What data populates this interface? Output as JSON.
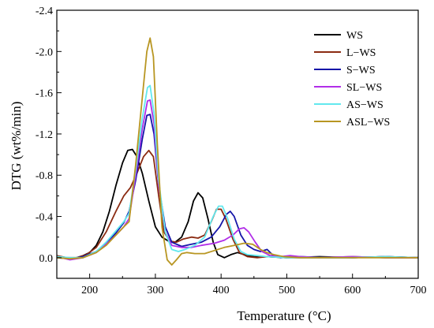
{
  "chart_data": {
    "type": "line",
    "title": "",
    "xlabel": "Temperature (°C)",
    "ylabel": "DTG (wt%/min)",
    "xlim": [
      150,
      700
    ],
    "ylim": [
      0.2,
      -2.4
    ],
    "y_axis_inverted": true,
    "x_ticks": [
      200,
      300,
      400,
      500,
      600,
      700
    ],
    "x_tick_labels": [
      "200",
      "300",
      "400",
      "500",
      "600",
      "700"
    ],
    "y_ticks": [
      0.0,
      -0.4,
      -0.8,
      -1.2,
      -1.6,
      -2.0,
      -2.4
    ],
    "y_tick_labels": [
      "0.0",
      "-0.4",
      "-0.8",
      "-1.2",
      "-1.6",
      "-2.0",
      "-2.4"
    ],
    "grid": false,
    "legend_position": "top-right",
    "series": [
      {
        "name": "WS",
        "color": "#000000",
        "points": [
          [
            150,
            -0.02
          ],
          [
            160,
            0.0
          ],
          [
            175,
            0.01
          ],
          [
            190,
            -0.02
          ],
          [
            200,
            -0.05
          ],
          [
            210,
            -0.12
          ],
          [
            220,
            -0.25
          ],
          [
            230,
            -0.45
          ],
          [
            240,
            -0.7
          ],
          [
            250,
            -0.92
          ],
          [
            258,
            -1.04
          ],
          [
            265,
            -1.05
          ],
          [
            272,
            -0.98
          ],
          [
            280,
            -0.82
          ],
          [
            290,
            -0.55
          ],
          [
            300,
            -0.3
          ],
          [
            310,
            -0.2
          ],
          [
            320,
            -0.16
          ],
          [
            330,
            -0.15
          ],
          [
            340,
            -0.2
          ],
          [
            350,
            -0.35
          ],
          [
            358,
            -0.55
          ],
          [
            365,
            -0.63
          ],
          [
            372,
            -0.58
          ],
          [
            380,
            -0.38
          ],
          [
            388,
            -0.15
          ],
          [
            395,
            -0.03
          ],
          [
            405,
            0.0
          ],
          [
            415,
            -0.03
          ],
          [
            425,
            -0.05
          ],
          [
            435,
            -0.03
          ],
          [
            450,
            -0.01
          ],
          [
            470,
            -0.01
          ],
          [
            500,
            0.0
          ],
          [
            550,
            -0.01
          ],
          [
            600,
            0.0
          ],
          [
            650,
            -0.01
          ],
          [
            700,
            0.0
          ]
        ]
      },
      {
        "name": "L−WS",
        "color": "#8b2b12",
        "points": [
          [
            150,
            -0.02
          ],
          [
            165,
            0.0
          ],
          [
            180,
            0.0
          ],
          [
            195,
            -0.03
          ],
          [
            210,
            -0.1
          ],
          [
            225,
            -0.25
          ],
          [
            240,
            -0.45
          ],
          [
            252,
            -0.6
          ],
          [
            262,
            -0.68
          ],
          [
            272,
            -0.82
          ],
          [
            282,
            -0.98
          ],
          [
            290,
            -1.04
          ],
          [
            297,
            -0.98
          ],
          [
            305,
            -0.6
          ],
          [
            313,
            -0.25
          ],
          [
            322,
            -0.16
          ],
          [
            332,
            -0.15
          ],
          [
            342,
            -0.18
          ],
          [
            355,
            -0.2
          ],
          [
            365,
            -0.19
          ],
          [
            375,
            -0.22
          ],
          [
            385,
            -0.35
          ],
          [
            393,
            -0.47
          ],
          [
            400,
            -0.47
          ],
          [
            407,
            -0.38
          ],
          [
            418,
            -0.18
          ],
          [
            428,
            -0.05
          ],
          [
            440,
            -0.01
          ],
          [
            455,
            0.0
          ],
          [
            470,
            -0.01
          ],
          [
            500,
            0.0
          ],
          [
            550,
            0.0
          ],
          [
            600,
            -0.01
          ],
          [
            650,
            0.0
          ],
          [
            700,
            0.0
          ]
        ]
      },
      {
        "name": "S−WS",
        "color": "#1515a8",
        "points": [
          [
            150,
            0.0
          ],
          [
            170,
            0.01
          ],
          [
            190,
            -0.01
          ],
          [
            210,
            -0.06
          ],
          [
            225,
            -0.14
          ],
          [
            240,
            -0.24
          ],
          [
            252,
            -0.34
          ],
          [
            260,
            -0.45
          ],
          [
            270,
            -0.75
          ],
          [
            280,
            -1.15
          ],
          [
            287,
            -1.38
          ],
          [
            292,
            -1.39
          ],
          [
            298,
            -1.2
          ],
          [
            305,
            -0.7
          ],
          [
            315,
            -0.3
          ],
          [
            325,
            -0.15
          ],
          [
            340,
            -0.11
          ],
          [
            355,
            -0.13
          ],
          [
            370,
            -0.15
          ],
          [
            385,
            -0.2
          ],
          [
            398,
            -0.3
          ],
          [
            408,
            -0.42
          ],
          [
            414,
            -0.45
          ],
          [
            420,
            -0.4
          ],
          [
            430,
            -0.22
          ],
          [
            440,
            -0.12
          ],
          [
            450,
            -0.08
          ],
          [
            460,
            -0.06
          ],
          [
            470,
            -0.08
          ],
          [
            478,
            -0.03
          ],
          [
            490,
            0.0
          ],
          [
            520,
            -0.01
          ],
          [
            560,
            0.0
          ],
          [
            600,
            0.0
          ],
          [
            650,
            -0.01
          ],
          [
            700,
            0.0
          ]
        ]
      },
      {
        "name": "SL−WS",
        "color": "#b12ee8",
        "points": [
          [
            150,
            -0.01
          ],
          [
            170,
            0.02
          ],
          [
            190,
            0.0
          ],
          [
            210,
            -0.05
          ],
          [
            225,
            -0.13
          ],
          [
            240,
            -0.22
          ],
          [
            252,
            -0.3
          ],
          [
            260,
            -0.38
          ],
          [
            270,
            -0.8
          ],
          [
            280,
            -1.25
          ],
          [
            288,
            -1.52
          ],
          [
            292,
            -1.53
          ],
          [
            298,
            -1.3
          ],
          [
            305,
            -0.7
          ],
          [
            315,
            -0.25
          ],
          [
            325,
            -0.12
          ],
          [
            340,
            -0.1
          ],
          [
            355,
            -0.1
          ],
          [
            370,
            -0.12
          ],
          [
            390,
            -0.14
          ],
          [
            405,
            -0.17
          ],
          [
            418,
            -0.22
          ],
          [
            428,
            -0.28
          ],
          [
            435,
            -0.29
          ],
          [
            442,
            -0.25
          ],
          [
            452,
            -0.15
          ],
          [
            462,
            -0.06
          ],
          [
            475,
            -0.02
          ],
          [
            490,
            -0.01
          ],
          [
            505,
            -0.02
          ],
          [
            520,
            -0.01
          ],
          [
            550,
            0.0
          ],
          [
            600,
            -0.01
          ],
          [
            650,
            0.0
          ],
          [
            700,
            0.0
          ]
        ]
      },
      {
        "name": "AS−WS",
        "color": "#62e8ee",
        "points": [
          [
            150,
            -0.01
          ],
          [
            170,
            0.0
          ],
          [
            190,
            0.0
          ],
          [
            210,
            -0.06
          ],
          [
            225,
            -0.15
          ],
          [
            240,
            -0.26
          ],
          [
            252,
            -0.35
          ],
          [
            260,
            -0.43
          ],
          [
            270,
            -0.85
          ],
          [
            280,
            -1.35
          ],
          [
            288,
            -1.65
          ],
          [
            292,
            -1.67
          ],
          [
            298,
            -1.4
          ],
          [
            305,
            -0.75
          ],
          [
            315,
            -0.25
          ],
          [
            325,
            -0.08
          ],
          [
            335,
            -0.06
          ],
          [
            345,
            -0.08
          ],
          [
            360,
            -0.12
          ],
          [
            375,
            -0.2
          ],
          [
            388,
            -0.4
          ],
          [
            396,
            -0.5
          ],
          [
            402,
            -0.5
          ],
          [
            410,
            -0.38
          ],
          [
            420,
            -0.18
          ],
          [
            430,
            -0.06
          ],
          [
            440,
            -0.03
          ],
          [
            455,
            -0.02
          ],
          [
            470,
            -0.01
          ],
          [
            500,
            0.0
          ],
          [
            550,
            0.0
          ],
          [
            600,
            0.0
          ],
          [
            650,
            -0.01
          ],
          [
            700,
            0.0
          ]
        ]
      },
      {
        "name": "ASL−WS",
        "color": "#b89622",
        "points": [
          [
            150,
            0.0
          ],
          [
            170,
            0.01
          ],
          [
            190,
            0.0
          ],
          [
            210,
            -0.05
          ],
          [
            225,
            -0.12
          ],
          [
            240,
            -0.22
          ],
          [
            252,
            -0.3
          ],
          [
            260,
            -0.35
          ],
          [
            270,
            -0.9
          ],
          [
            280,
            -1.55
          ],
          [
            287,
            -2.0
          ],
          [
            292,
            -2.13
          ],
          [
            297,
            -1.95
          ],
          [
            303,
            -1.1
          ],
          [
            310,
            -0.3
          ],
          [
            318,
            0.02
          ],
          [
            325,
            0.07
          ],
          [
            332,
            0.02
          ],
          [
            340,
            -0.04
          ],
          [
            348,
            -0.05
          ],
          [
            360,
            -0.04
          ],
          [
            375,
            -0.04
          ],
          [
            390,
            -0.07
          ],
          [
            405,
            -0.1
          ],
          [
            420,
            -0.12
          ],
          [
            435,
            -0.14
          ],
          [
            448,
            -0.13
          ],
          [
            460,
            -0.08
          ],
          [
            470,
            -0.05
          ],
          [
            480,
            -0.03
          ],
          [
            495,
            -0.01
          ],
          [
            520,
            0.0
          ],
          [
            560,
            0.0
          ],
          [
            600,
            0.0
          ],
          [
            650,
            0.0
          ],
          [
            700,
            0.0
          ]
        ]
      }
    ]
  }
}
